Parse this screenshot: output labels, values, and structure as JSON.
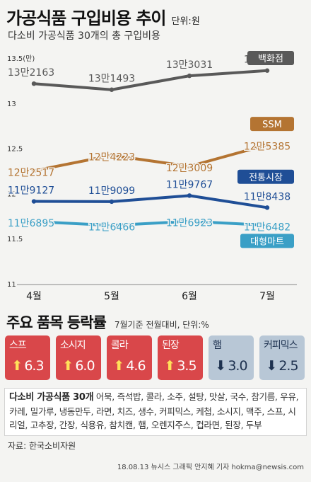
{
  "header": {
    "title": "가공식품 구입비용 추이",
    "unit": "단위:원",
    "subtitle": "다소비 가공식품 30개의 총 구입비용"
  },
  "chart_data": {
    "type": "line",
    "categories": [
      "4월",
      "5월",
      "6월",
      "7월"
    ],
    "y_ticks": [
      "13.5(만)",
      "13",
      "12.5",
      "12",
      "11.5",
      "11"
    ],
    "ylim": [
      110000,
      135000
    ],
    "grid": false,
    "series": [
      {
        "name": "백화점",
        "values": [
          132163,
          131493,
          133031,
          133610
        ],
        "labels": [
          "13만2163",
          "13만1493",
          "13만3031",
          "13만3610"
        ],
        "color": "#595959"
      },
      {
        "name": "SSM",
        "values": [
          122517,
          124223,
          123009,
          125385
        ],
        "labels": [
          "12만2517",
          "12만4223",
          "12만3009",
          "12만5385"
        ],
        "color": "#b47432"
      },
      {
        "name": "전통시장",
        "values": [
          119127,
          119099,
          119767,
          118438
        ],
        "labels": [
          "11만9127",
          "11만9099",
          "11만9767",
          "11만8438"
        ],
        "color": "#1f4e96"
      },
      {
        "name": "대형마트",
        "values": [
          116895,
          116466,
          116923,
          116482
        ],
        "labels": [
          "11만6895",
          "11만6466",
          "11만6923",
          "11만6482"
        ],
        "color": "#3a9fc6"
      }
    ]
  },
  "section": {
    "title": "주요 품목 등락률",
    "note": "7월기준 전월대비, 단위:%"
  },
  "items": [
    {
      "name": "스프",
      "value": "6.3",
      "direction": "up"
    },
    {
      "name": "소시지",
      "value": "6.0",
      "direction": "up"
    },
    {
      "name": "콜라",
      "value": "4.6",
      "direction": "up"
    },
    {
      "name": "된장",
      "value": "3.5",
      "direction": "up"
    },
    {
      "name": "햄",
      "value": "3.0",
      "direction": "down"
    },
    {
      "name": "커피믹스",
      "value": "2.5",
      "direction": "down"
    }
  ],
  "items_box": {
    "lead": "다소비 가공식품 30개",
    "list": " 어묵, 즉석밥, 콜라, 소주, 설탕, 맛살, 국수, 참기름, 우유, 카레, 밀가루, 냉동만두, 라면, 치즈, 생수, 커피믹스, 케첩, 소시지, 맥주, 스프, 시리얼, 고추장, 간장, 식용유, 참치캔, 햄, 오렌지주스, 컵라면, 된장, 두부"
  },
  "source": "자료: 한국소비자원",
  "credit": "18.08.13 뉴시스 그래픽 안지혜 기자 hokma@newsis.com"
}
